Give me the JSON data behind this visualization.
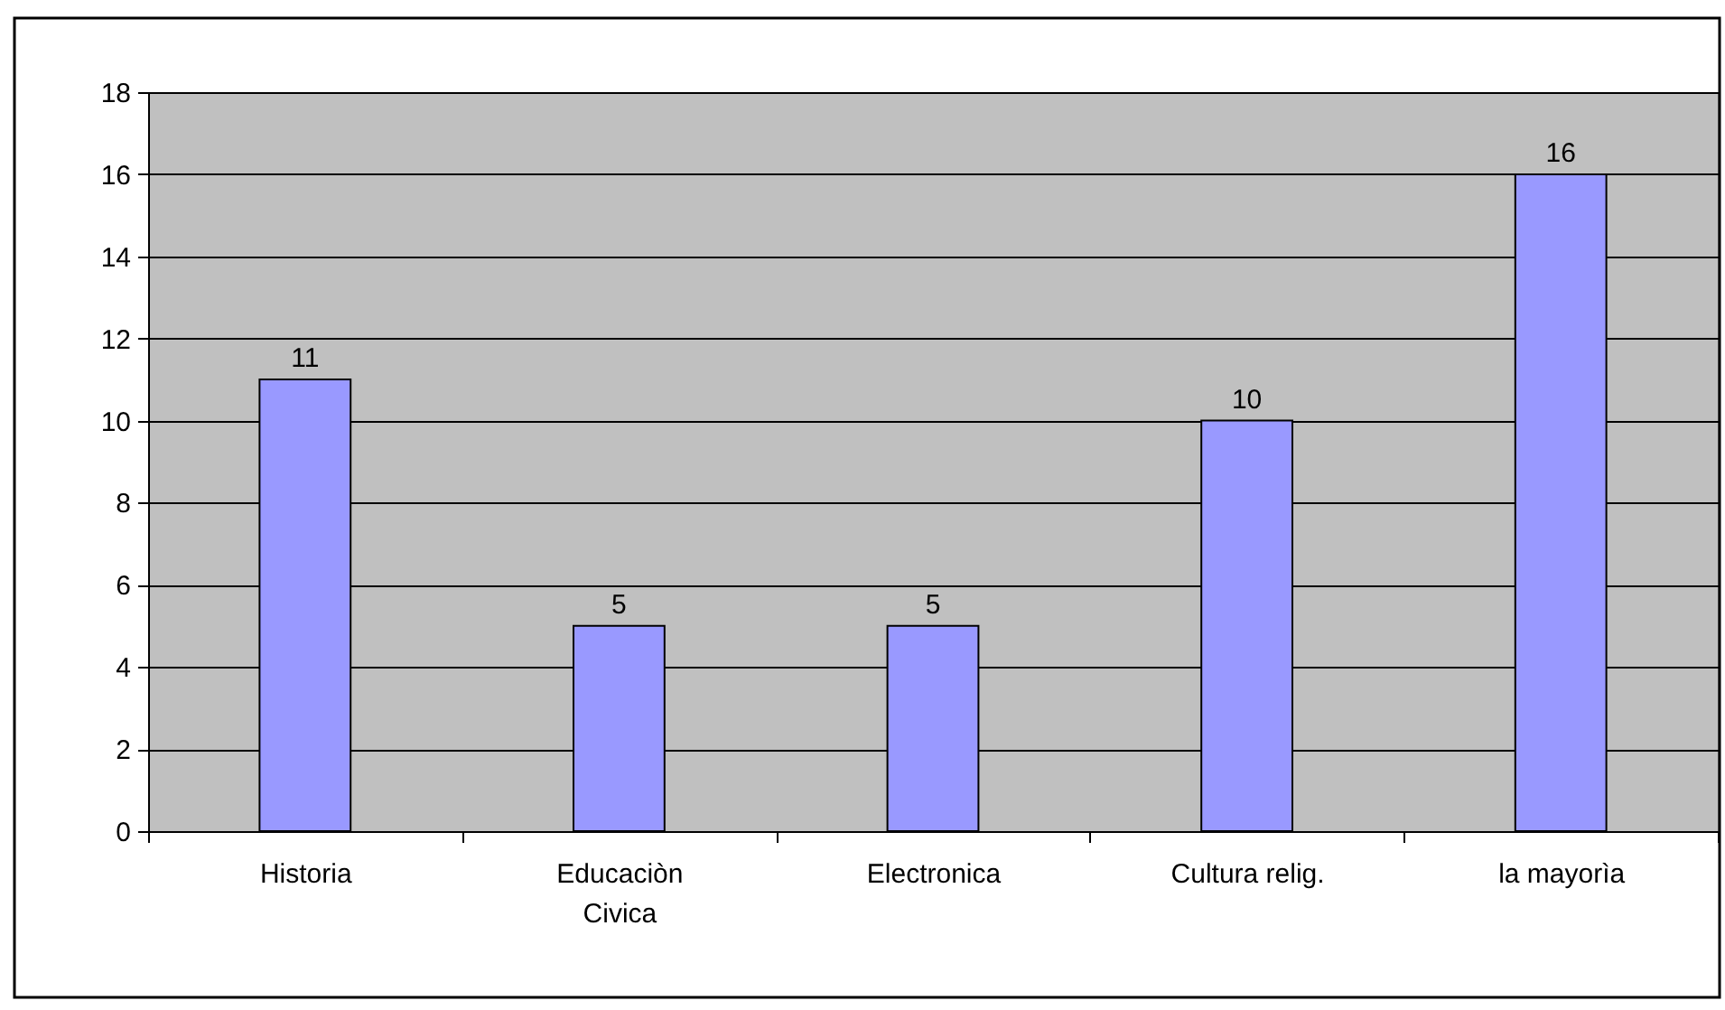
{
  "chart_data": {
    "type": "bar",
    "categories": [
      "Historia",
      "Educaciòn Civica",
      "Electronica",
      "Cultura relig.",
      "la mayorìa"
    ],
    "values": [
      11,
      5,
      5,
      10,
      16
    ],
    "color": "#9999ff",
    "ylim": [
      0,
      18
    ],
    "yticks": [
      0,
      2,
      4,
      6,
      8,
      10,
      12,
      14,
      16,
      18
    ],
    "grid": "y",
    "data_labels": true
  }
}
